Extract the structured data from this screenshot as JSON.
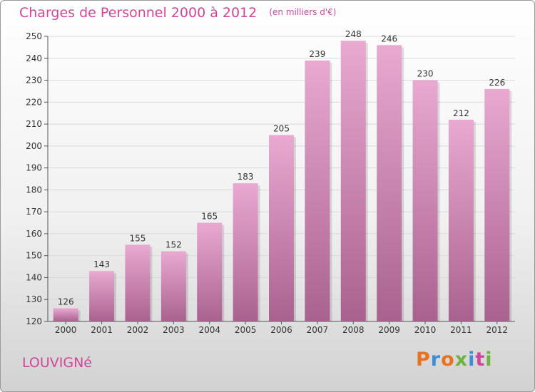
{
  "header": {
    "title": "Charges de Personnel 2000 à 2012",
    "subtitle": "(en milliers d'€)"
  },
  "footer": {
    "commune": "LOUVIGNé",
    "logo_text": "Proxiti"
  },
  "colors": {
    "accent": "#d0479a",
    "bar_top": "#e9a9d1",
    "bar_bottom": "#a9628f",
    "logo": [
      "#e8721f",
      "#3a8fd6",
      "#e8721f",
      "#6cb33f",
      "#3a8fd6",
      "#d0479a",
      "#6cb33f"
    ]
  },
  "chart_data": {
    "type": "bar",
    "categories": [
      "2000",
      "2001",
      "2002",
      "2003",
      "2004",
      "2005",
      "2006",
      "2007",
      "2008",
      "2009",
      "2010",
      "2011",
      "2012"
    ],
    "values": [
      126,
      143,
      155,
      152,
      165,
      183,
      205,
      239,
      248,
      246,
      230,
      212,
      226
    ],
    "data_labels": [
      "126",
      "143",
      "155",
      "152",
      "165",
      "183",
      "205",
      "239",
      "248",
      "246",
      "230",
      "212",
      "226"
    ],
    "ylim": [
      120,
      250
    ],
    "yticks": [
      "120",
      "130",
      "140",
      "150",
      "160",
      "170",
      "180",
      "190",
      "200",
      "210",
      "220",
      "230",
      "240",
      "250"
    ],
    "grid": true,
    "xlabel": "",
    "ylabel": ""
  }
}
